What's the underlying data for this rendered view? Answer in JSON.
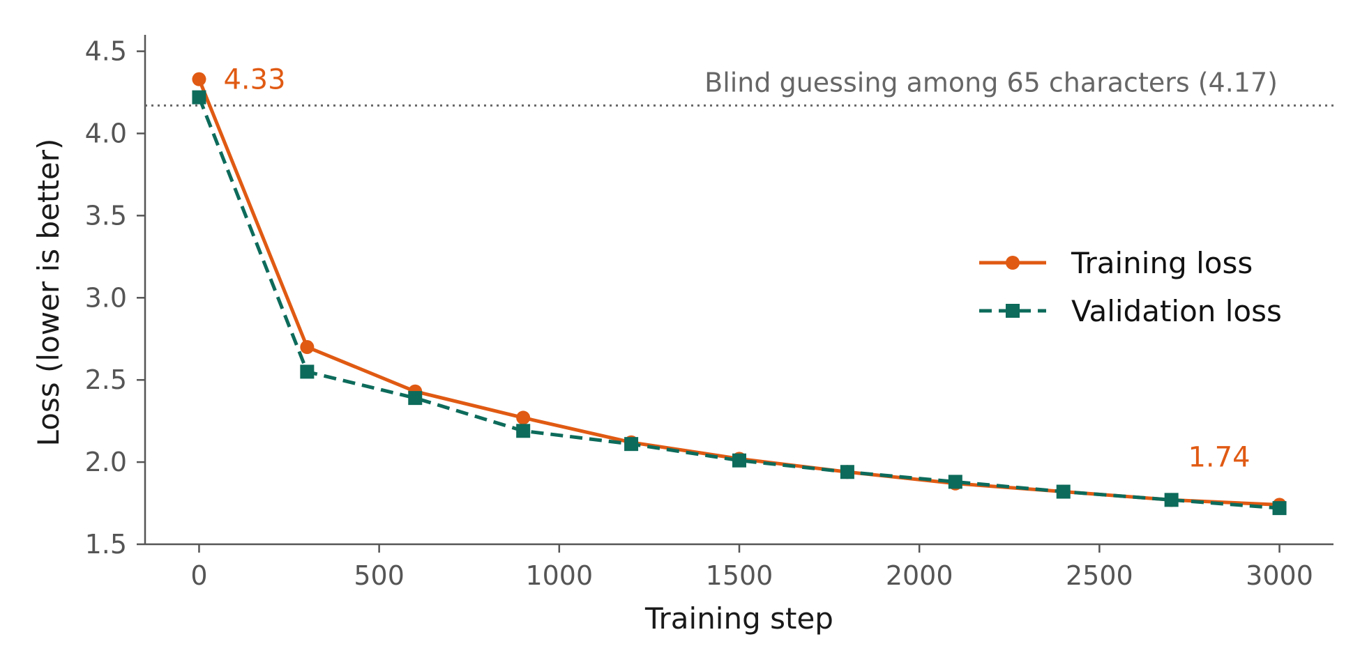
{
  "chart_data": {
    "type": "line",
    "xlabel": "Training step",
    "ylabel": "Loss (lower is better)",
    "xlim": [
      -150,
      3150
    ],
    "ylim": [
      1.5,
      4.6
    ],
    "xticks": [
      0,
      500,
      1000,
      1500,
      2000,
      2500,
      3000
    ],
    "xtick_labels": [
      "0",
      "500",
      "1000",
      "1500",
      "2000",
      "2500",
      "3000"
    ],
    "yticks": [
      1.5,
      2.0,
      2.5,
      3.0,
      3.5,
      4.0,
      4.5
    ],
    "ytick_labels": [
      "1.5",
      "2.0",
      "2.5",
      "3.0",
      "3.5",
      "4.0",
      "4.5"
    ],
    "grid": false,
    "legend_position": "right",
    "x": [
      0,
      300,
      600,
      900,
      1200,
      1500,
      1800,
      2100,
      2400,
      2700,
      3000
    ],
    "series": [
      {
        "name": "Training loss",
        "color": "#e05a13",
        "marker": "circle",
        "line_style": "solid",
        "values": [
          4.33,
          2.7,
          2.43,
          2.27,
          2.12,
          2.02,
          1.94,
          1.87,
          1.82,
          1.77,
          1.74
        ]
      },
      {
        "name": "Validation loss",
        "color": "#0d6b5b",
        "marker": "square",
        "line_style": "dashed",
        "values": [
          4.22,
          2.55,
          2.39,
          2.19,
          2.11,
          2.01,
          1.94,
          1.88,
          1.82,
          1.77,
          1.72
        ]
      }
    ],
    "reference_line": {
      "y": 4.17,
      "label": "Blind guessing among 65 characters (4.17)",
      "color": "#666666",
      "line_style": "dotted"
    },
    "annotations": [
      {
        "text": "4.33",
        "x": 0,
        "y": 4.33,
        "color": "#e05a13"
      },
      {
        "text": "1.74",
        "x": 3000,
        "y": 1.74,
        "color": "#e05a13"
      }
    ]
  }
}
